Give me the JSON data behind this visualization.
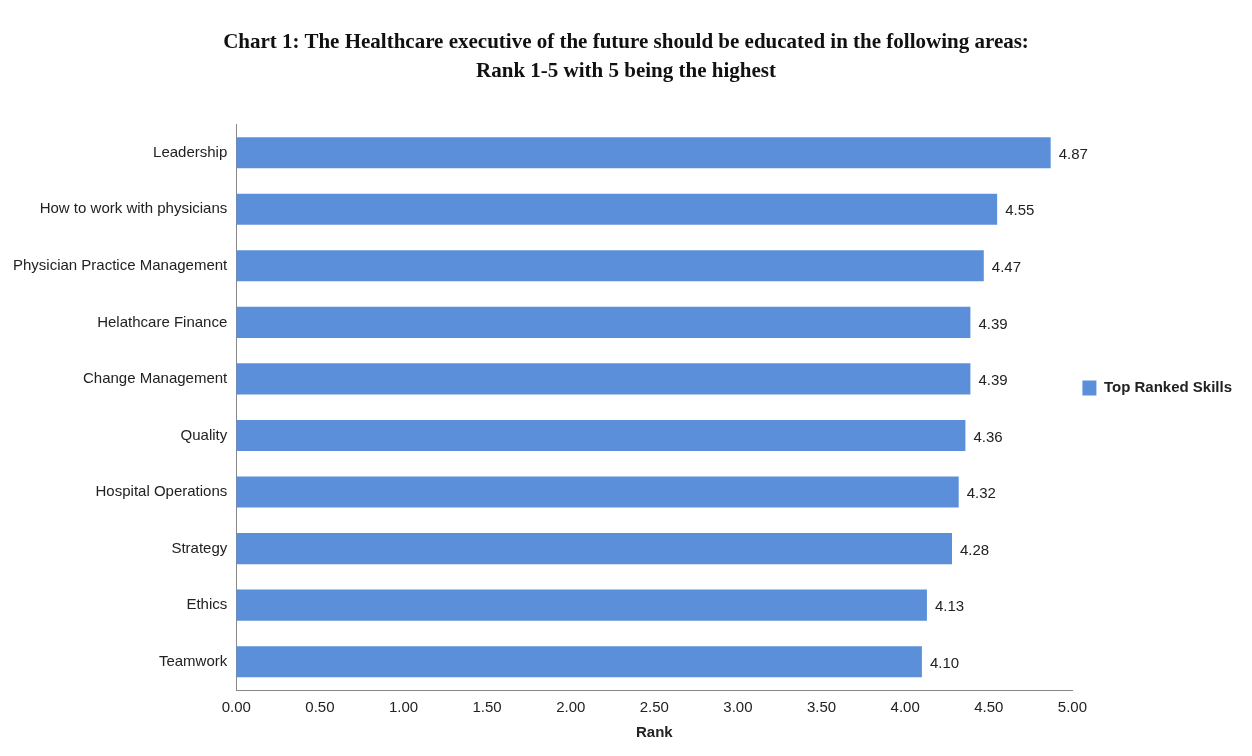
{
  "chart_data": {
    "type": "bar",
    "orientation": "horizontal",
    "title": "Chart 1: The Healthcare executive of the future should be educated in the following areas:",
    "subtitle": "Rank 1-5 with 5 being the highest",
    "xlabel": "Rank",
    "categories": [
      "Leadership",
      "How to work with physicians",
      "Physician Practice Management",
      "Helathcare Finance",
      "Change Management",
      "Quality",
      "Hospital Operations",
      "Strategy",
      "Ethics",
      "Teamwork"
    ],
    "series": [
      {
        "name": "Top Ranked Skills",
        "color": "#5b8fd9",
        "values": [
          4.87,
          4.55,
          4.47,
          4.39,
          4.39,
          4.36,
          4.32,
          4.28,
          4.13,
          4.1
        ],
        "value_labels": [
          "4.87",
          "4.55",
          "4.47",
          "4.39",
          "4.39",
          "4.36",
          "4.32",
          "4.28",
          "4.13",
          "4.10"
        ]
      }
    ],
    "xlim": [
      0,
      5
    ],
    "xticks": [
      {
        "value": 0,
        "label": "0.00"
      },
      {
        "value": 0.5,
        "label": "0.50"
      },
      {
        "value": 1,
        "label": "1.00"
      },
      {
        "value": 1.5,
        "label": "1.50"
      },
      {
        "value": 2,
        "label": "2.00"
      },
      {
        "value": 2.5,
        "label": "2.50"
      },
      {
        "value": 3,
        "label": "3.00"
      },
      {
        "value": 3.5,
        "label": "3.50"
      },
      {
        "value": 4,
        "label": "4.00"
      },
      {
        "value": 4.5,
        "label": "4.50"
      },
      {
        "value": 5,
        "label": "5.00"
      }
    ],
    "grid": false,
    "legend": "right"
  }
}
